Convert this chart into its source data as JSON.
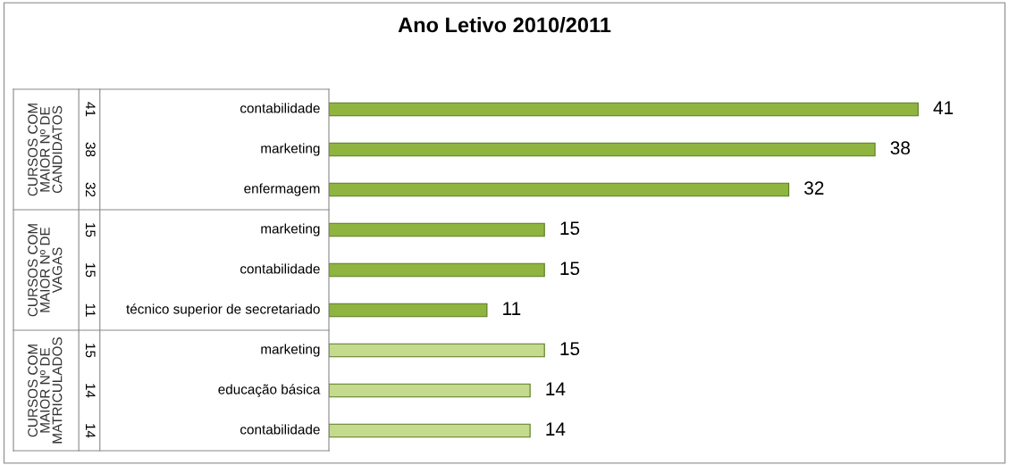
{
  "chart_data": {
    "type": "bar",
    "orientation": "horizontal",
    "title": "Ano Letivo 2010/2011",
    "categories": [
      "contabilidade",
      "marketing",
      "enfermagem",
      "marketing",
      "contabilidade",
      "técnico superior de secretariado",
      "marketing",
      "educação básica",
      "contabilidade"
    ],
    "values": [
      41,
      38,
      32,
      15,
      15,
      11,
      15,
      14,
      14
    ],
    "colors": [
      "#8fb43f",
      "#8fb43f",
      "#8fb43f",
      "#8fb43f",
      "#8fb43f",
      "#8fb43f",
      "#c4da8c",
      "#c4da8c",
      "#c4da8c"
    ],
    "value_labels": [
      "41",
      "38",
      "32",
      "15",
      "15",
      "11",
      "15",
      "14",
      "14"
    ],
    "annotations": [
      "CURSOS COM\nMAIOR Nº DE\nCANDIDATOS",
      "CURSOS COM\nMAIOR Nº DE\nVAGAS",
      "CURSOS COM\nMAIOR Nº DE\nMATRICULADOS"
    ]
  }
}
